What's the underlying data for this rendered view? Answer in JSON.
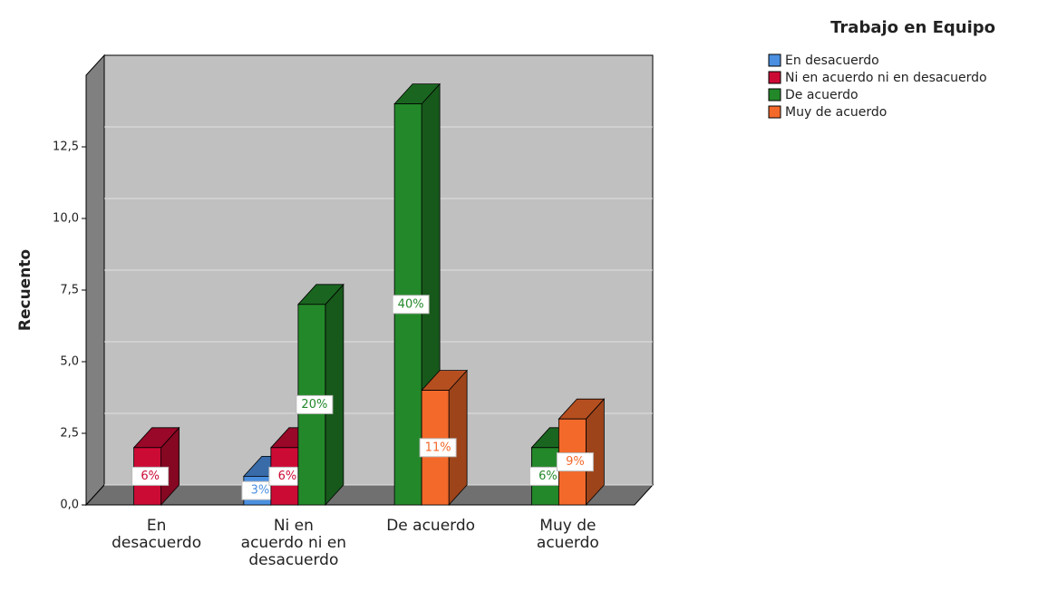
{
  "chart_data": {
    "type": "bar3d",
    "y_label": "Recuento",
    "legend_title": "Trabajo en Equipo",
    "legend": "top-right",
    "grid": true,
    "categories": [
      "En desacuerdo",
      "Ni en acuerdo ni en desacuerdo",
      "De acuerdo",
      "Muy de acuerdo"
    ],
    "series": [
      {
        "name": "En desacuerdo",
        "color": "#4a8fe0",
        "values": [
          null,
          1,
          null,
          null
        ],
        "value_labels": [
          null,
          "3%",
          null,
          null
        ]
      },
      {
        "name": "Ni en acuerdo ni en desacuerdo",
        "color": "#cc0b35",
        "values": [
          2,
          2,
          null,
          null
        ],
        "value_labels": [
          "6%",
          "6%",
          null,
          null
        ]
      },
      {
        "name": "De acuerdo",
        "color": "#23882a",
        "values": [
          null,
          7,
          14,
          2
        ],
        "value_labels": [
          null,
          "20%",
          "40%",
          "6%"
        ]
      },
      {
        "name": "Muy de acuerdo",
        "color": "#f2692a",
        "values": [
          null,
          null,
          4,
          3
        ],
        "value_labels": [
          null,
          null,
          "11%",
          "9%"
        ]
      }
    ],
    "ylim": [
      0,
      15
    ],
    "yticks": [
      {
        "value": 0,
        "label": "0,0"
      },
      {
        "value": 2.5,
        "label": "2,5"
      },
      {
        "value": 5,
        "label": "5,0"
      },
      {
        "value": 7.5,
        "label": "7,5"
      },
      {
        "value": 10,
        "label": "10,0"
      },
      {
        "value": 12.5,
        "label": "12,5"
      }
    ]
  }
}
